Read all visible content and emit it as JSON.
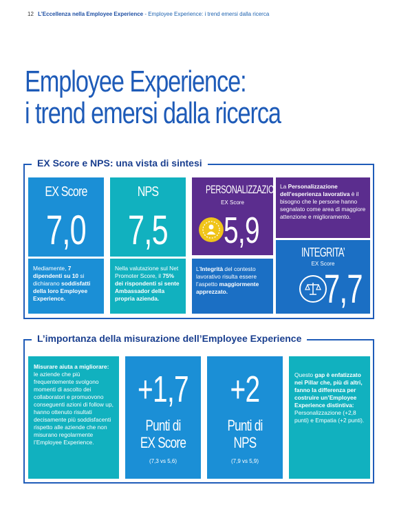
{
  "header": {
    "page_number": "12",
    "section": "L’Eccellenza nella Employee Experience",
    "subsection": " - Employee Experience: i trend emersi dalla ricerca"
  },
  "title": {
    "line1": "Employee Experience:",
    "line2": "i trend emersi dalla ricerca"
  },
  "section1": {
    "heading": "EX Score e NPS: una vista di sintesi",
    "ex_score": {
      "label": "EX Score",
      "value": "7,0",
      "desc_1": "Mediamente, ",
      "desc_2": "7 dipendenti su 10",
      "desc_3": " si dichiarano ",
      "desc_4": "soddisfatti della loro Employee Experience."
    },
    "nps": {
      "label": "NPS",
      "value": "7,5",
      "desc_1": "Nella valutazione sul Net Promoter Score, il ",
      "desc_2": "75% dei rispondenti si sente Ambassador della propria azienda."
    },
    "personalizzazione": {
      "title": "PERSONALIZZAZIONE",
      "subtitle": "EX Score",
      "value": "5,9",
      "icon": "person-icon",
      "desc_1": "La ",
      "desc_2": "Personalizzazione dell’esperienza lavorativa",
      "desc_3": " è il bisogno che le persone hanno segnalato come area di maggiore attenzione e miglioramento."
    },
    "integrita": {
      "title": "INTEGRITA’",
      "subtitle": "EX Score",
      "value": "7,7",
      "icon": "scales-icon",
      "desc_1": "L’",
      "desc_2": "Integrità",
      "desc_3": " del contesto lavorativo risulta essere l’aspetto ",
      "desc_4": "maggiormente apprezzato."
    }
  },
  "section2": {
    "heading": "L’importanza della misurazione dell’Employee Experience",
    "measure": {
      "bold": "Misurare aiuta a migliorare:",
      "text": " le aziende che più frequentemente svolgono momenti di ascolto dei collaboratori e promuovono conseguenti azioni di follow up, hanno ottenuto risultati decisamente più soddisfacenti rispetto alle aziende che non misurano regolarmente l’Employee Experience."
    },
    "ex_points": {
      "value": "+1,7",
      "unit_line1": "Punti di",
      "unit_line2": "EX Score",
      "comparison": "(7,3 vs 5,6)"
    },
    "nps_points": {
      "value": "+2",
      "unit_line1": "Punti di",
      "unit_line2": "NPS",
      "comparison": "(7,9 vs 5,9)"
    },
    "gap": {
      "text_1": "Questo ",
      "text_2": "gap è enfatizzato nei Pillar che, più di altri, fanno la differenza per costruire un’Employee Experience distintiva:",
      "text_3": " Personalizzazione (+2,8 punti) e Empatia (+2 punti)."
    }
  },
  "colors": {
    "brand_blue": "#1e5bb8",
    "tile_blue": "#1b8fd6",
    "tile_teal": "#11b1bf",
    "tile_purple": "#5b2d8e",
    "tile_darkblue": "#1b6fc4",
    "icon_yellow": "#f0c419"
  }
}
